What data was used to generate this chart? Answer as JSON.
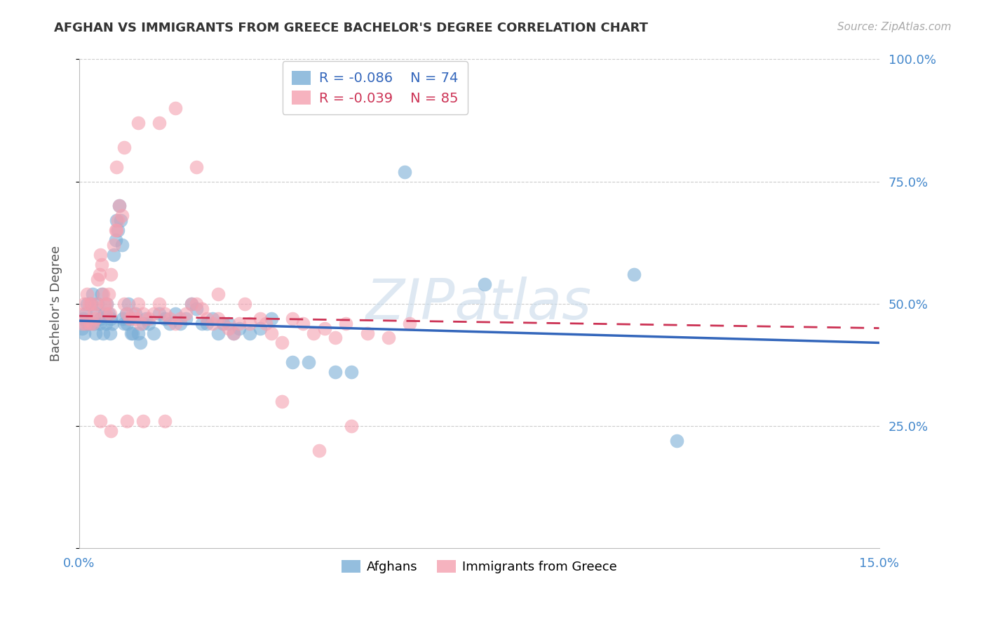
{
  "title": "AFGHAN VS IMMIGRANTS FROM GREECE BACHELOR'S DEGREE CORRELATION CHART",
  "source": "Source: ZipAtlas.com",
  "ylabel": "Bachelor's Degree",
  "xlim": [
    0.0,
    15.0
  ],
  "ylim": [
    0.0,
    100.0
  ],
  "background_color": "#ffffff",
  "grid_color": "#cccccc",
  "series_blue": {
    "label": "Afghans",
    "R": -0.086,
    "N": 74,
    "color": "#7aaed6",
    "trend_color": "#3366bb"
  },
  "series_pink": {
    "label": "Immigrants from Greece",
    "R": -0.039,
    "N": 85,
    "color": "#f4a0b0",
    "trend_color": "#cc3355"
  },
  "blue_x": [
    0.05,
    0.08,
    0.1,
    0.12,
    0.15,
    0.18,
    0.2,
    0.22,
    0.25,
    0.28,
    0.3,
    0.32,
    0.35,
    0.38,
    0.4,
    0.42,
    0.45,
    0.48,
    0.5,
    0.52,
    0.55,
    0.58,
    0.6,
    0.62,
    0.65,
    0.68,
    0.7,
    0.72,
    0.75,
    0.78,
    0.8,
    0.82,
    0.85,
    0.88,
    0.9,
    0.92,
    0.95,
    0.98,
    1.0,
    1.05,
    1.1,
    1.15,
    1.2,
    1.25,
    1.3,
    1.4,
    1.5,
    1.6,
    1.7,
    1.8,
    1.9,
    2.0,
    2.1,
    2.2,
    2.3,
    2.4,
    2.5,
    2.6,
    2.7,
    2.8,
    2.9,
    3.0,
    3.2,
    3.4,
    3.6,
    4.0,
    4.3,
    4.8,
    5.1,
    6.1,
    7.6,
    10.4,
    11.2,
    0.15
  ],
  "blue_y": [
    45,
    47,
    44,
    48,
    50,
    46,
    46,
    50,
    52,
    46,
    44,
    48,
    50,
    46,
    47,
    52,
    44,
    48,
    46,
    50,
    48,
    44,
    47,
    46,
    60,
    63,
    67,
    65,
    70,
    67,
    62,
    47,
    46,
    48,
    46,
    50,
    47,
    44,
    44,
    48,
    44,
    42,
    46,
    47,
    46,
    44,
    48,
    47,
    46,
    48,
    46,
    47,
    50,
    49,
    46,
    46,
    47,
    44,
    46,
    46,
    44,
    45,
    44,
    45,
    47,
    38,
    38,
    36,
    36,
    77,
    54,
    56,
    22,
    46
  ],
  "pink_x": [
    0.05,
    0.08,
    0.1,
    0.12,
    0.15,
    0.18,
    0.2,
    0.22,
    0.25,
    0.28,
    0.3,
    0.32,
    0.35,
    0.38,
    0.4,
    0.42,
    0.45,
    0.48,
    0.5,
    0.52,
    0.55,
    0.58,
    0.6,
    0.65,
    0.68,
    0.7,
    0.72,
    0.75,
    0.8,
    0.85,
    0.9,
    0.95,
    1.0,
    1.05,
    1.1,
    1.15,
    1.2,
    1.3,
    1.4,
    1.5,
    1.6,
    1.7,
    1.8,
    1.9,
    2.0,
    2.1,
    2.2,
    2.3,
    2.4,
    2.5,
    2.6,
    2.7,
    2.8,
    2.9,
    3.0,
    3.2,
    3.4,
    3.5,
    3.6,
    3.8,
    4.0,
    4.2,
    4.4,
    4.6,
    4.8,
    5.0,
    5.4,
    5.8,
    6.2,
    0.7,
    0.85,
    1.1,
    1.5,
    1.8,
    2.2,
    2.6,
    3.1,
    3.8,
    4.5,
    5.1,
    0.4,
    0.6,
    0.9,
    1.2,
    1.6
  ],
  "pink_y": [
    46,
    48,
    50,
    46,
    52,
    50,
    46,
    50,
    46,
    48,
    47,
    50,
    55,
    56,
    60,
    58,
    52,
    50,
    48,
    50,
    52,
    48,
    56,
    62,
    65,
    65,
    67,
    70,
    68,
    50,
    48,
    47,
    48,
    47,
    50,
    46,
    48,
    47,
    48,
    50,
    48,
    47,
    46,
    47,
    48,
    50,
    50,
    49,
    47,
    46,
    47,
    46,
    45,
    44,
    46,
    46,
    47,
    46,
    44,
    42,
    47,
    46,
    44,
    45,
    43,
    46,
    44,
    43,
    46,
    78,
    82,
    87,
    87,
    90,
    78,
    52,
    50,
    30,
    20,
    25,
    26,
    24,
    26,
    26,
    26
  ],
  "blue_trend_x": [
    0.0,
    15.0
  ],
  "blue_trend_y": [
    46.5,
    42.0
  ],
  "pink_trend_x": [
    0.0,
    15.0
  ],
  "pink_trend_y": [
    47.5,
    45.0
  ],
  "legend_R_blue": "R = -0.086",
  "legend_N_blue": "N = 74",
  "legend_R_pink": "R = -0.039",
  "legend_N_pink": "N = 85",
  "title_fontsize": 13,
  "source_fontsize": 11,
  "tick_fontsize": 13,
  "ylabel_fontsize": 13,
  "legend_fontsize": 14,
  "watermark_text": "ZIPatlas",
  "watermark_color": "#c8daea",
  "watermark_alpha": 0.6,
  "watermark_fontsize": 58
}
